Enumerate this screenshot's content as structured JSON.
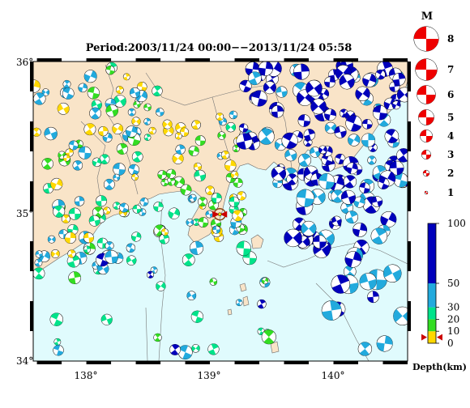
{
  "map": {
    "title": "Period:2003/11/24 00:00−−2013/11/24 05:58",
    "lat_labels": [
      "36°",
      "35°",
      "34°"
    ],
    "lon_labels": [
      "138°",
      "139°",
      "140°"
    ],
    "lat_range": [
      34,
      36
    ],
    "lon_range": [
      137.57,
      140.6
    ],
    "colors": {
      "land": "#f9e4c8",
      "sea": "#e0fbfd",
      "border": "#000000",
      "depth_0_10": "#ffd800",
      "depth_10_20": "#33dd22",
      "depth_20_30": "#00e38a",
      "depth_30_50": "#22aadd",
      "depth_50_100": "#0000bb"
    },
    "target_event": {
      "lon": 139.08,
      "lat": 34.98,
      "marker": "star-icon"
    }
  },
  "magnitude_legend": {
    "header": "M",
    "items": [
      {
        "label": "8",
        "mag": 8
      },
      {
        "label": "7",
        "mag": 7
      },
      {
        "label": "6",
        "mag": 6
      },
      {
        "label": "5",
        "mag": 5
      },
      {
        "label": "4",
        "mag": 4
      },
      {
        "label": "3",
        "mag": 3
      },
      {
        "label": "2",
        "mag": 2
      },
      {
        "label": "1",
        "mag": 1
      }
    ]
  },
  "depth_legend": {
    "ticks": [
      {
        "label": "100",
        "value": 100
      },
      {
        "label": "50",
        "value": 50
      },
      {
        "label": "30",
        "value": 30
      },
      {
        "label": "20",
        "value": 20
      },
      {
        "label": "10",
        "value": 10
      },
      {
        "label": "0",
        "value": 0
      }
    ],
    "axis_label": "Depth(km)"
  }
}
